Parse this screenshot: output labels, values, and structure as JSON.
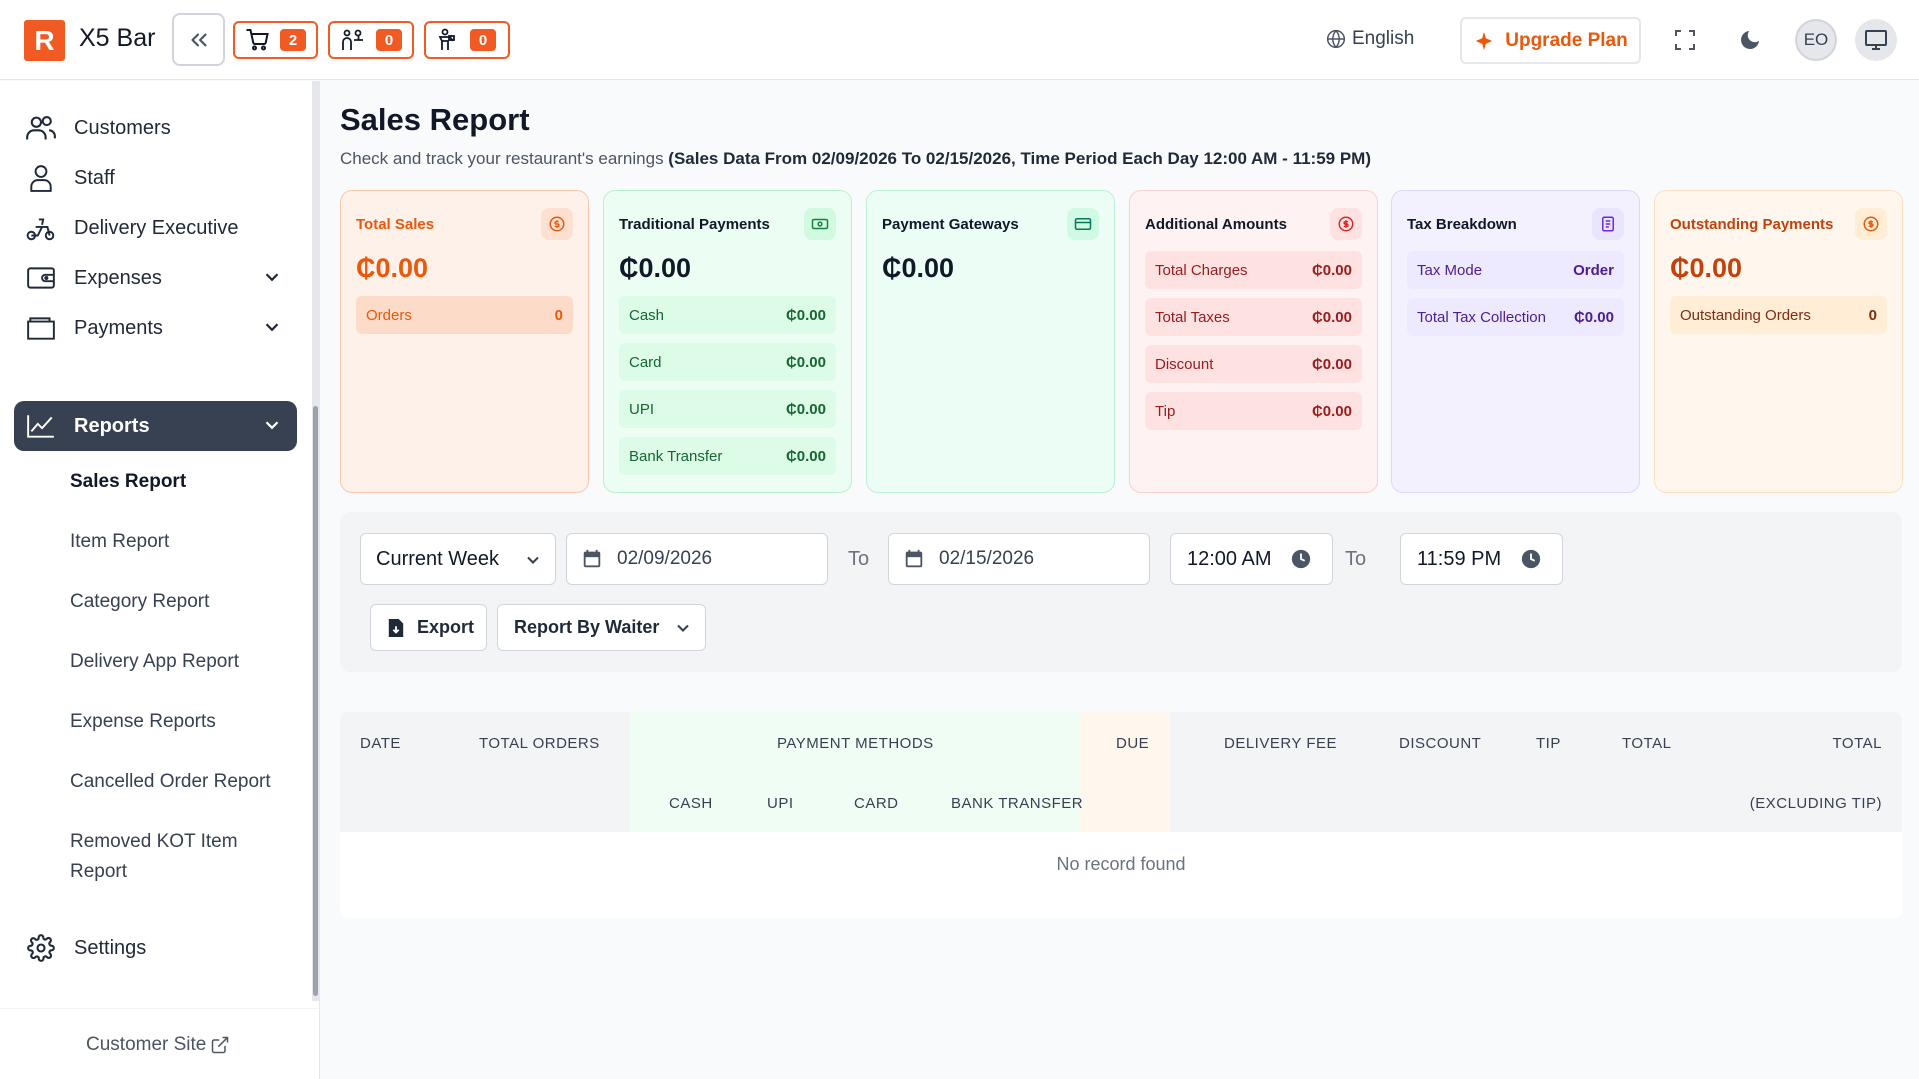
{
  "header": {
    "logo_letter": "R",
    "brand": "X5 Bar",
    "badges": [
      {
        "icon": "cart-icon",
        "count": "2"
      },
      {
        "icon": "waiter-icon",
        "count": "0"
      },
      {
        "icon": "delivery-person-icon",
        "count": "0"
      }
    ],
    "language": "English",
    "upgrade_label": "Upgrade Plan",
    "avatar_initials": "EO"
  },
  "sidebar": {
    "items": [
      {
        "label": "Customers",
        "icon": "users-icon"
      },
      {
        "label": "Staff",
        "icon": "user-icon"
      },
      {
        "label": "Delivery Executive",
        "icon": "scooter-icon"
      },
      {
        "label": "Expenses",
        "icon": "wallet-icon"
      },
      {
        "label": "Payments",
        "icon": "folder-icon"
      },
      {
        "label": "Reports",
        "icon": "chart-icon"
      }
    ],
    "sub_items": [
      "Sales Report",
      "Item Report",
      "Category Report",
      "Delivery App Report",
      "Expense Reports",
      "Cancelled Order Report",
      "Removed KOT Item Report"
    ],
    "settings_label": "Settings",
    "customer_site": "Customer Site"
  },
  "page": {
    "title": "Sales Report",
    "subtitle_plain": "Check and track your restaurant's earnings ",
    "subtitle_bold": "(Sales Data From 02/09/2026 To 02/15/2026, Time Period Each Day 12:00 AM - 11:59 PM)"
  },
  "cards": {
    "total_sales": {
      "title": "Total Sales",
      "value": "₵0.00",
      "orders_label": "Orders",
      "orders_value": "0"
    },
    "traditional": {
      "title": "Traditional Payments",
      "value": "₵0.00",
      "rows": [
        {
          "label": "Cash",
          "value": "₵0.00"
        },
        {
          "label": "Card",
          "value": "₵0.00"
        },
        {
          "label": "UPI",
          "value": "₵0.00"
        },
        {
          "label": "Bank Transfer",
          "value": "₵0.00"
        }
      ]
    },
    "gateways": {
      "title": "Payment Gateways",
      "value": "₵0.00"
    },
    "additional": {
      "title": "Additional Amounts",
      "rows": [
        {
          "label": "Total Charges",
          "value": "₵0.00"
        },
        {
          "label": "Total Taxes",
          "value": "₵0.00"
        },
        {
          "label": "Discount",
          "value": "₵0.00"
        },
        {
          "label": "Tip",
          "value": "₵0.00"
        }
      ]
    },
    "tax": {
      "title": "Tax Breakdown",
      "rows": [
        {
          "label": "Tax Mode",
          "value": "Order"
        },
        {
          "label": "Total Tax Collection",
          "value": "₵0.00"
        }
      ]
    },
    "outstanding": {
      "title": "Outstanding Payments",
      "value": "₵0.00",
      "orders_label": "Outstanding Orders",
      "orders_value": "0"
    }
  },
  "filters": {
    "period": "Current Week",
    "start_date": "02/09/2026",
    "to_label": "To",
    "end_date": "02/15/2026",
    "start_time": "12:00 AM",
    "end_time": "11:59 PM",
    "export_label": "Export",
    "report_by": "Report By Waiter"
  },
  "table": {
    "headers": {
      "date": "DATE",
      "total_orders": "TOTAL ORDERS",
      "payment_methods": "PAYMENT METHODS",
      "cash": "CASH",
      "upi": "UPI",
      "card": "CARD",
      "bank_transfer": "BANK TRANSFER",
      "due": "DUE",
      "delivery_fee": "DELIVERY FEE",
      "discount": "DISCOUNT",
      "tip": "TIP",
      "total": "TOTAL",
      "total_excl": "TOTAL",
      "excl_tip": "(EXCLUDING TIP)"
    },
    "empty_message": "No record found"
  }
}
